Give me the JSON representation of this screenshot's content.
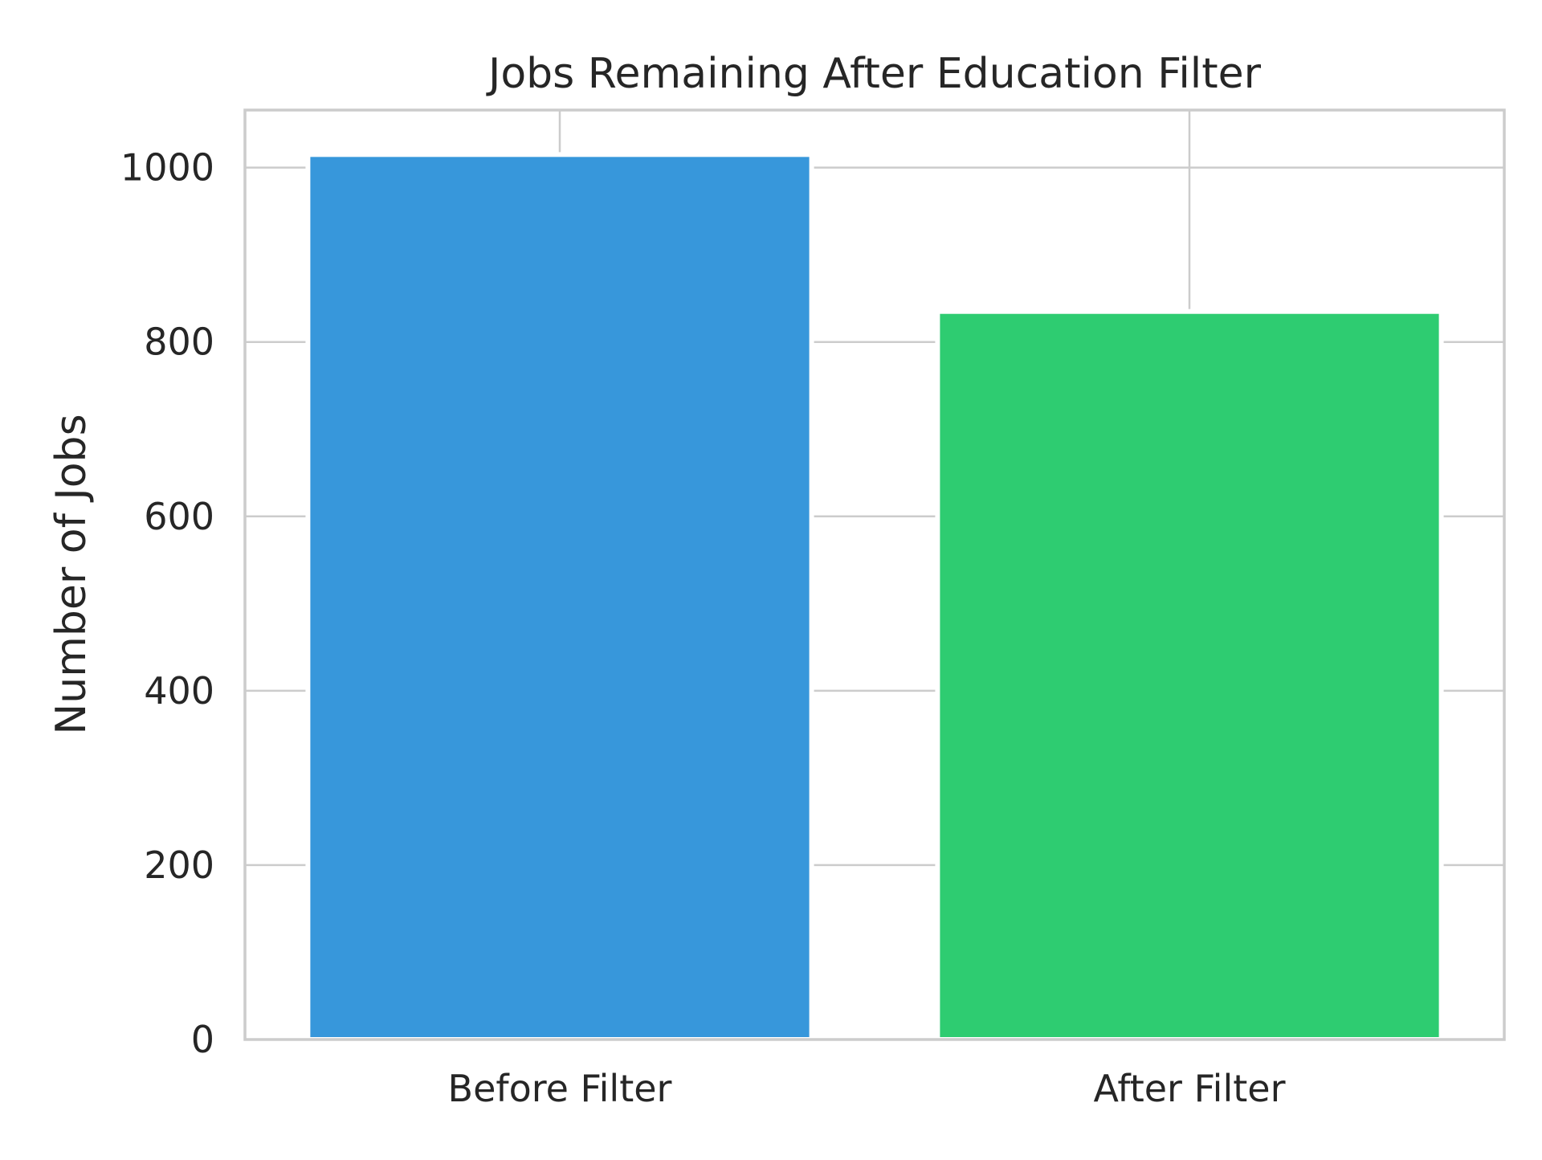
{
  "chart_data": {
    "type": "bar",
    "title": "Jobs Remaining After Education Filter",
    "xlabel": "",
    "ylabel": "Number of Jobs",
    "categories": [
      "Before Filter",
      "After Filter"
    ],
    "values": [
      1015,
      835
    ],
    "colors": [
      "#3797db",
      "#2ecc71"
    ],
    "ylim": [
      0,
      1066
    ],
    "yticks": [
      0,
      200,
      400,
      600,
      800,
      1000
    ],
    "grid": true,
    "legend": "none"
  }
}
